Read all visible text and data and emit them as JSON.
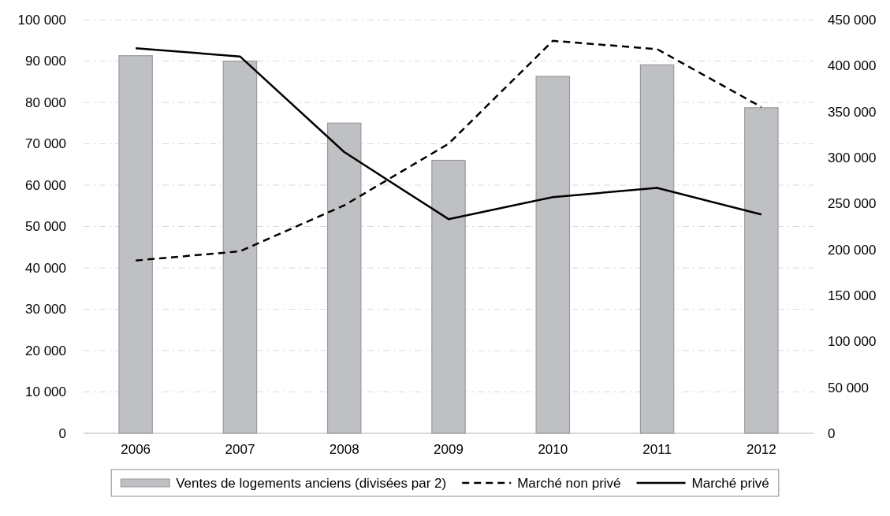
{
  "chart_data": {
    "type": "bar",
    "categories": [
      "2006",
      "2007",
      "2008",
      "2009",
      "2010",
      "2011",
      "2012"
    ],
    "series": [
      {
        "name": "Ventes de logements anciens (divisées par 2)",
        "color": "#bfc0c4",
        "values": [
          91300,
          90000,
          75000,
          66000,
          86300,
          89100,
          78700
        ]
      },
      {
        "name": "Marché non privé",
        "type": "line",
        "axis": "y2",
        "line_style": "dashed",
        "color": "#000000",
        "values": [
          188000,
          198000,
          248000,
          315000,
          427000,
          418000,
          355000
        ]
      },
      {
        "name": "Marché privé",
        "type": "line",
        "axis": "y2",
        "line_style": "solid",
        "color": "#000000",
        "values": [
          419000,
          410000,
          306000,
          233000,
          257000,
          267000,
          238000
        ]
      }
    ],
    "ylim": [
      0,
      100000
    ],
    "yticks": [
      0,
      {
        "value": 10000,
        "label": "10 000"
      },
      {
        "value": 20000,
        "label": "20 000"
      },
      {
        "value": 30000,
        "label": "30 000"
      },
      {
        "value": 40000,
        "label": "40 000"
      },
      {
        "value": 50000,
        "label": "50 000"
      },
      {
        "value": 60000,
        "label": "60 000"
      },
      {
        "value": 70000,
        "label": "70 000"
      },
      {
        "value": 80000,
        "label": "80 000"
      },
      {
        "value": 90000,
        "label": "90 000"
      },
      {
        "value": 100000,
        "label": "100 000"
      }
    ],
    "y2lim": [
      0,
      450000
    ],
    "y2ticks": [
      0,
      {
        "value": 50000,
        "label": "50 000"
      },
      {
        "value": 100000,
        "label": "100 000"
      },
      {
        "value": 150000,
        "label": "150 000"
      },
      {
        "value": 200000,
        "label": "200 000"
      },
      {
        "value": 250000,
        "label": "250 000"
      },
      {
        "value": 300000,
        "label": "300 000"
      },
      {
        "value": 350000,
        "label": "350 000"
      },
      {
        "value": 400000,
        "label": "400 000"
      },
      {
        "value": 450000,
        "label": "450 000"
      }
    ],
    "grid": "y",
    "legend": "bottom",
    "marker": "none"
  }
}
